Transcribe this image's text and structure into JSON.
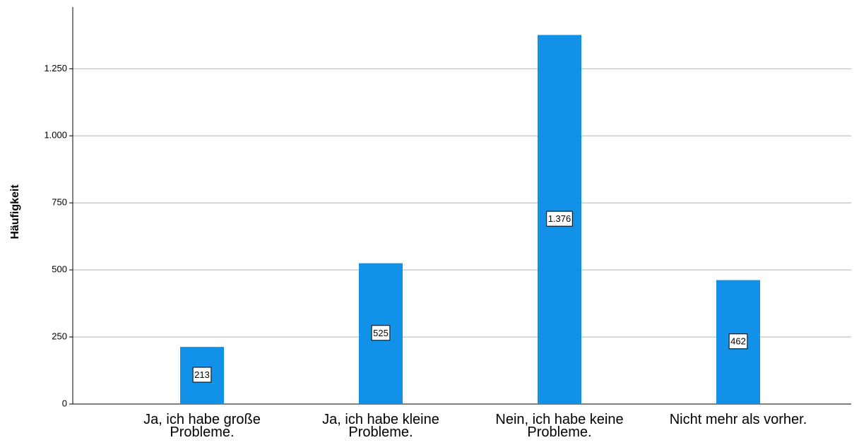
{
  "chart_data": {
    "type": "bar",
    "y_label": "Häufigkeit",
    "categories": [
      "Ja, ich habe große Probleme.",
      "Ja, ich habe kleine Probleme.",
      "Nein, ich habe keine Probleme.",
      "Nicht mehr als vorher."
    ],
    "values": [
      213,
      525,
      1376,
      462
    ],
    "value_labels": [
      "213",
      "525",
      "1.376",
      "462"
    ],
    "color": "#1192e8",
    "ylim": [
      0,
      1480
    ],
    "yticks": [
      0,
      250,
      500,
      750,
      {
        "value": 1000,
        "label": "1.000"
      },
      {
        "value": 1250,
        "label": "1.250"
      }
    ],
    "grid": true
  }
}
